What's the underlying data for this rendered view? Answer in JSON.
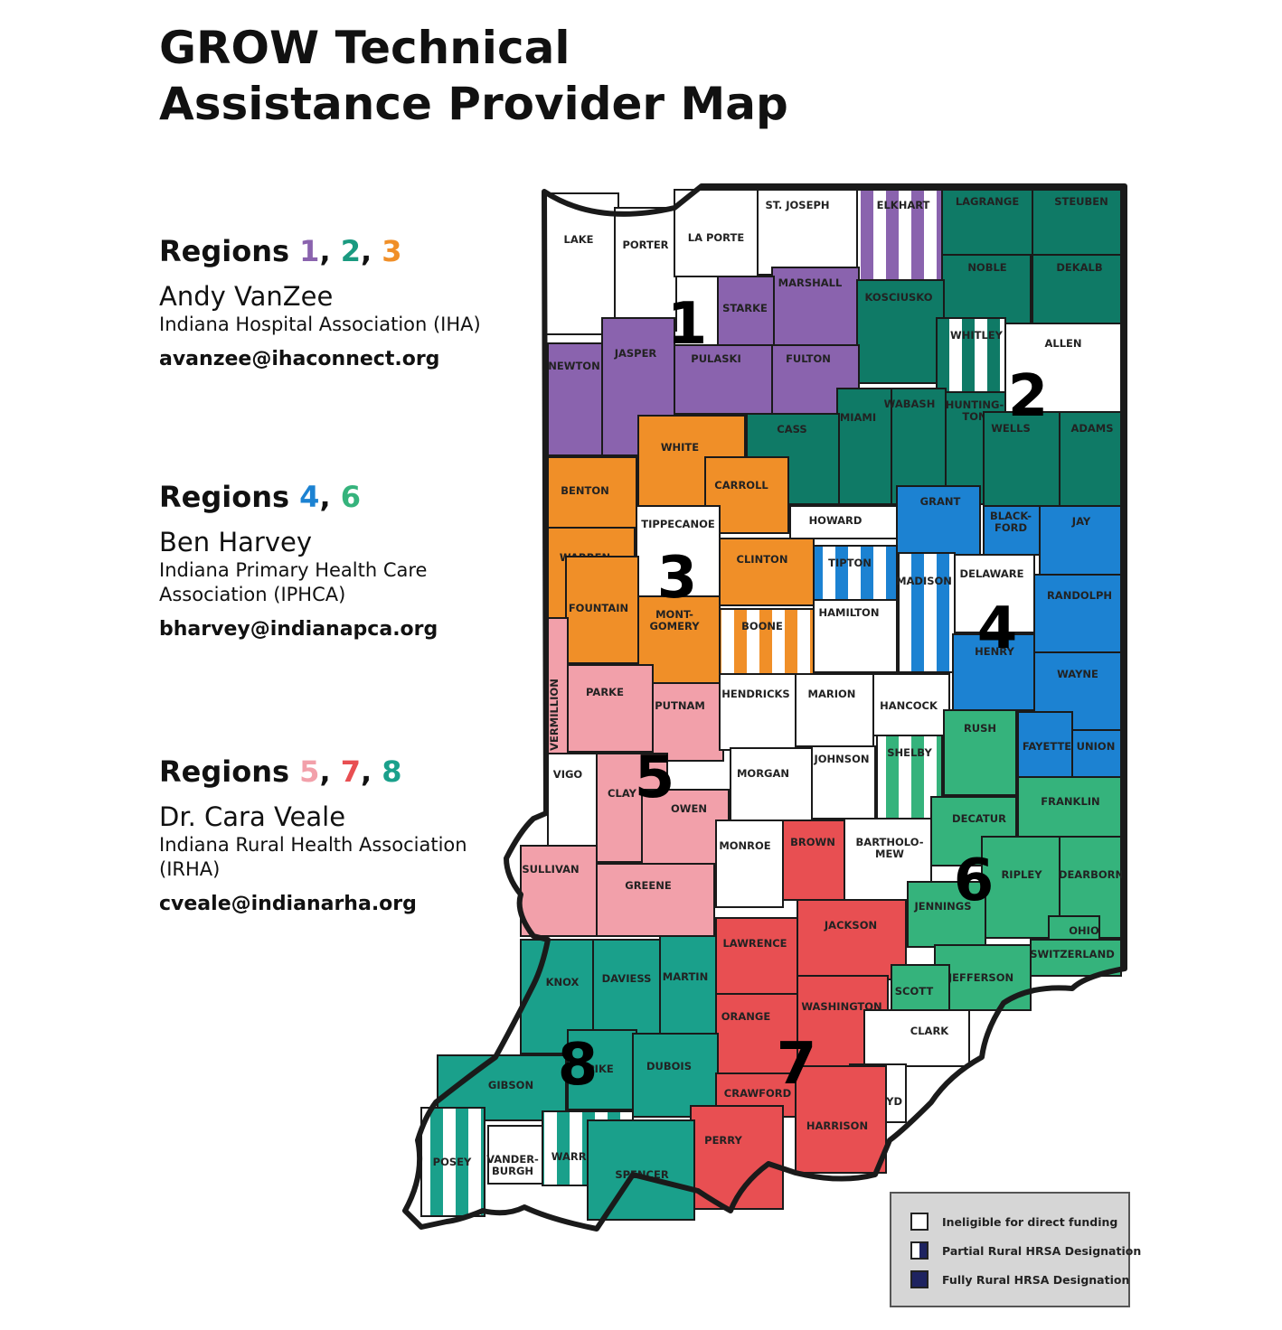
{
  "title": {
    "line1": "GROW Technical",
    "line2": "Assistance Provider Map"
  },
  "colors": {
    "purple": "#8a63ae",
    "teal": "#0f7a66",
    "orange": "#f08f28",
    "blue": "#1c82d2",
    "pink": "#f2a0aa",
    "red": "#e84f52",
    "green": "#35b37c",
    "seafoam": "#1aa08b",
    "white": "#ffffff",
    "navy": "#1e2360"
  },
  "providers": [
    {
      "heading_prefix": "Regions ",
      "nums": [
        "1",
        "2",
        "3"
      ],
      "num_colors": [
        "#8a63ae",
        "#1a9a80",
        "#f08f28"
      ],
      "name": "Andy VanZee",
      "org": [
        "Indiana Hospital Association (IHA)"
      ],
      "email": "avanzee@ihaconnect.org"
    },
    {
      "heading_prefix": "Regions ",
      "nums": [
        "4",
        "6"
      ],
      "num_colors": [
        "#1c82d2",
        "#35b37c"
      ],
      "name": "Ben Harvey",
      "org": [
        "Indiana Primary Health Care",
        "Association (IPHCA)"
      ],
      "email": "bharvey@indianapca.org"
    },
    {
      "heading_prefix": "Regions ",
      "nums": [
        "5",
        "7",
        "8"
      ],
      "num_colors": [
        "#f2a0aa",
        "#e84f52",
        "#1aa08b"
      ],
      "name": "Dr. Cara Veale",
      "org": [
        "Indiana Rural Health Association",
        "(IRHA)"
      ],
      "email": "cveale@indianarha.org"
    }
  ],
  "region_numbers": [
    "1",
    "2",
    "3",
    "4",
    "5",
    "6",
    "7",
    "8"
  ],
  "counties": [
    {
      "name": "LAKE",
      "fill": "white"
    },
    {
      "name": "PORTER",
      "fill": "white"
    },
    {
      "name": "LA PORTE",
      "fill": "white"
    },
    {
      "name": "ST. JOSEPH",
      "fill": "white"
    },
    {
      "name": "ELKHART",
      "fill": "purple",
      "partial": true
    },
    {
      "name": "LAGRANGE",
      "fill": "teal"
    },
    {
      "name": "STEUBEN",
      "fill": "teal"
    },
    {
      "name": "NOBLE",
      "fill": "teal"
    },
    {
      "name": "DEKALB",
      "fill": "teal"
    },
    {
      "name": "MARSHALL",
      "fill": "purple"
    },
    {
      "name": "STARKE",
      "fill": "purple"
    },
    {
      "name": "KOSCIUSKO",
      "fill": "teal"
    },
    {
      "name": "WHITLEY",
      "fill": "teal",
      "partial": true
    },
    {
      "name": "ALLEN",
      "fill": "white"
    },
    {
      "name": "NEWTON",
      "fill": "purple"
    },
    {
      "name": "JASPER",
      "fill": "purple"
    },
    {
      "name": "PULASKI",
      "fill": "purple"
    },
    {
      "name": "FULTON",
      "fill": "purple"
    },
    {
      "name": "MIAMI",
      "fill": "teal"
    },
    {
      "name": "WABASH",
      "fill": "teal"
    },
    {
      "name": "HUNTING-",
      "name2": "TON",
      "fill": "teal"
    },
    {
      "name": "WELLS",
      "fill": "teal"
    },
    {
      "name": "ADAMS",
      "fill": "teal"
    },
    {
      "name": "CASS",
      "fill": "teal"
    },
    {
      "name": "WHITE",
      "fill": "orange"
    },
    {
      "name": "CARROLL",
      "fill": "orange"
    },
    {
      "name": "BENTON",
      "fill": "orange"
    },
    {
      "name": "TIPPECANOE",
      "fill": "white"
    },
    {
      "name": "WARREN",
      "fill": "orange"
    },
    {
      "name": "FOUNTAIN",
      "fill": "orange"
    },
    {
      "name": "MONT-",
      "name2": "GOMERY",
      "fill": "orange"
    },
    {
      "name": "CLINTON",
      "fill": "orange"
    },
    {
      "name": "BOONE",
      "fill": "orange",
      "partial": true
    },
    {
      "name": "HOWARD",
      "fill": "white"
    },
    {
      "name": "TIPTON",
      "fill": "blue",
      "partial": true
    },
    {
      "name": "HAMILTON",
      "fill": "white"
    },
    {
      "name": "GRANT",
      "fill": "blue"
    },
    {
      "name": "BLACK-",
      "name2": "FORD",
      "fill": "blue"
    },
    {
      "name": "JAY",
      "fill": "blue"
    },
    {
      "name": "MADISON",
      "fill": "blue",
      "partial": true
    },
    {
      "name": "DELAWARE",
      "fill": "white"
    },
    {
      "name": "RANDOLPH",
      "fill": "blue"
    },
    {
      "name": "HENRY",
      "fill": "blue"
    },
    {
      "name": "WAYNE",
      "fill": "blue"
    },
    {
      "name": "FAYETTE",
      "fill": "blue"
    },
    {
      "name": "UNION",
      "fill": "blue"
    },
    {
      "name": "VERMILLION",
      "fill": "pink"
    },
    {
      "name": "PARKE",
      "fill": "pink"
    },
    {
      "name": "PUTNAM",
      "fill": "pink"
    },
    {
      "name": "HENDRICKS",
      "fill": "white"
    },
    {
      "name": "MARION",
      "fill": "white"
    },
    {
      "name": "HANCOCK",
      "fill": "white"
    },
    {
      "name": "RUSH",
      "fill": "green"
    },
    {
      "name": "SHELBY",
      "fill": "green",
      "partial": true
    },
    {
      "name": "VIGO",
      "fill": "white"
    },
    {
      "name": "CLAY",
      "fill": "pink"
    },
    {
      "name": "OWEN",
      "fill": "pink"
    },
    {
      "name": "MORGAN",
      "fill": "white"
    },
    {
      "name": "JOHNSON",
      "fill": "white"
    },
    {
      "name": "FRANKLIN",
      "fill": "green"
    },
    {
      "name": "DECATUR",
      "fill": "green"
    },
    {
      "name": "MONROE",
      "fill": "white"
    },
    {
      "name": "BROWN",
      "fill": "red"
    },
    {
      "name": "BARTHOLO-",
      "name2": "MEW",
      "fill": "white"
    },
    {
      "name": "SULLIVAN",
      "fill": "pink"
    },
    {
      "name": "GREENE",
      "fill": "pink"
    },
    {
      "name": "RIPLEY",
      "fill": "green"
    },
    {
      "name": "DEARBORN",
      "fill": "green"
    },
    {
      "name": "JENNINGS",
      "fill": "green"
    },
    {
      "name": "JACKSON",
      "fill": "red"
    },
    {
      "name": "LAWRENCE",
      "fill": "red"
    },
    {
      "name": "OHIO",
      "fill": "green"
    },
    {
      "name": "SWITZERLAND",
      "fill": "green"
    },
    {
      "name": "KNOX",
      "fill": "seafoam"
    },
    {
      "name": "DAVIESS",
      "fill": "seafoam"
    },
    {
      "name": "MARTIN",
      "fill": "seafoam"
    },
    {
      "name": "JEFFERSON",
      "fill": "green"
    },
    {
      "name": "SCOTT",
      "fill": "green"
    },
    {
      "name": "WASHINGTON",
      "fill": "red"
    },
    {
      "name": "ORANGE",
      "fill": "red"
    },
    {
      "name": "CLARK",
      "fill": "white"
    },
    {
      "name": "PIKE",
      "fill": "seafoam"
    },
    {
      "name": "DUBOIS",
      "fill": "seafoam"
    },
    {
      "name": "GIBSON",
      "fill": "seafoam"
    },
    {
      "name": "CRAWFORD",
      "fill": "red"
    },
    {
      "name": "FLOYD",
      "fill": "white"
    },
    {
      "name": "HARRISON",
      "fill": "red"
    },
    {
      "name": "PERRY",
      "fill": "red"
    },
    {
      "name": "POSEY",
      "fill": "seafoam",
      "partial": true
    },
    {
      "name": "VANDER-",
      "name2": "BURGH",
      "fill": "white"
    },
    {
      "name": "WARRICK",
      "fill": "seafoam",
      "partial": true
    },
    {
      "name": "SPENCER",
      "fill": "seafoam"
    }
  ],
  "legend": [
    {
      "label": "Ineligible for direct funding",
      "swatch": "white"
    },
    {
      "label": "Partial Rural HRSA Designation",
      "swatch": "partial"
    },
    {
      "label": "Fully Rural HRSA Designation",
      "swatch": "full"
    }
  ]
}
